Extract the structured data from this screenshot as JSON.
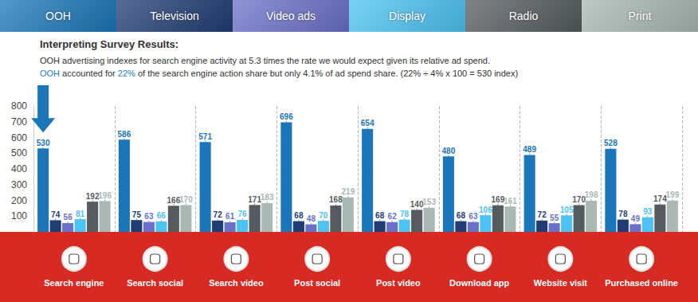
{
  "chart_data": {
    "type": "bar",
    "title": "Interpreting Survey Results:",
    "subtitle": [
      [
        {
          "text": "OOH advertising indexes for search engine activity at 5.3 times the rate we would expect given its relative ad spend."
        }
      ],
      [
        {
          "text": "OOH",
          "color": "#1f7dc0"
        },
        {
          "text": " accounted for "
        },
        {
          "text": "22%",
          "color": "#1f7dc0"
        },
        {
          "text": " of the search engine action share but only 4.1% of ad spend share. (22% ÷ 4% x 100 = 530 index)"
        }
      ]
    ],
    "categories": [
      "Search engine",
      "Search social",
      "Search video",
      "Post social",
      "Post video",
      "Download app",
      "Website visit",
      "Purchased online"
    ],
    "series": [
      {
        "name": "OOH",
        "color": "#1a76b8",
        "values": [
          530,
          586,
          571,
          696,
          654,
          480,
          489,
          528
        ]
      },
      {
        "name": "Television",
        "color": "#1f3c73",
        "values": [
          74,
          75,
          72,
          68,
          68,
          68,
          72,
          78
        ]
      },
      {
        "name": "Video ads",
        "color": "#6a70c8",
        "values": [
          56,
          63,
          61,
          48,
          62,
          63,
          55,
          49
        ]
      },
      {
        "name": "Display",
        "color": "#4cc3f2",
        "values": [
          81,
          66,
          76,
          70,
          78,
          106,
          105,
          93
        ]
      },
      {
        "name": "Radio",
        "color": "#555b5e",
        "values": [
          192,
          166,
          171,
          168,
          140,
          169,
          170,
          174
        ]
      },
      {
        "name": "Print",
        "color": "#a9b8b2",
        "values": [
          196,
          170,
          183,
          219,
          153,
          161,
          198,
          199
        ]
      }
    ],
    "ylim": [
      0,
      800
    ],
    "yticks": [
      100,
      200,
      300,
      400,
      500,
      600,
      700,
      800
    ],
    "grid": true,
    "data_labels": true,
    "legend": "top"
  }
}
